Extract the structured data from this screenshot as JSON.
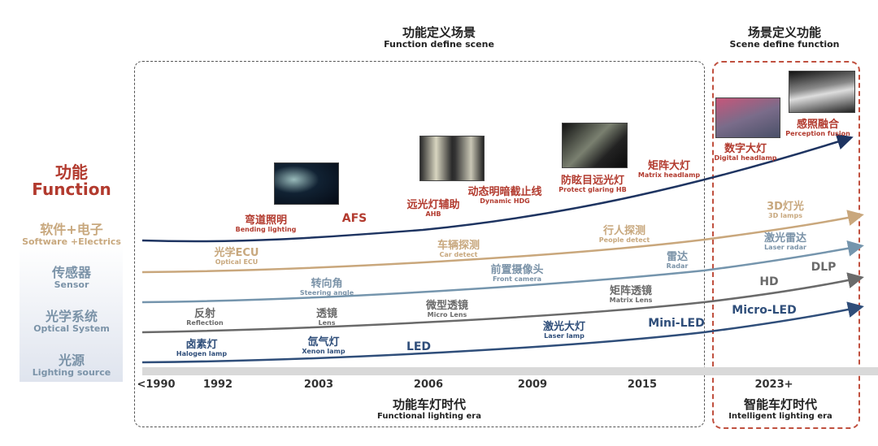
{
  "headers": {
    "left": {
      "cn": "功能定义场景",
      "en": "Function define scene"
    },
    "right": {
      "cn": "场景定义功能",
      "en": "Scene define function"
    },
    "left_bottom": {
      "cn": "功能车灯时代",
      "en": "Functional lighting era"
    },
    "right_bottom": {
      "cn": "智能车灯时代",
      "en": "Intelligent lighting era"
    }
  },
  "categories": [
    {
      "cn": "功能",
      "en": "Function"
    },
    {
      "cn": "软件+电子",
      "en": "Software +Electrics"
    },
    {
      "cn": "传感器",
      "en": "Sensor"
    },
    {
      "cn": "光学系统",
      "en": "Optical System"
    },
    {
      "cn": "光源",
      "en": "Lighting source"
    }
  ],
  "years": [
    "<1990",
    "1992",
    "2003",
    "2006",
    "2009",
    "2015",
    "2023+"
  ],
  "function_items": [
    {
      "cn": "弯道照明",
      "en": "Bending lighting"
    },
    {
      "cn": "AFS",
      "en": ""
    },
    {
      "cn": "远光灯辅助",
      "en": "AHB"
    },
    {
      "cn": "动态明暗截止线",
      "en": "Dynamic HDG"
    },
    {
      "cn": "防眩目远光灯",
      "en": "Protect glaring HB"
    },
    {
      "cn": "矩阵大灯",
      "en": "Matrix headlamp"
    },
    {
      "cn": "数字大灯",
      "en": "Digital headlamp"
    },
    {
      "cn": "感照融合",
      "en": "Perception fusion"
    }
  ],
  "software_items": [
    {
      "cn": "光学ECU",
      "en": "Optical ECU"
    },
    {
      "cn": "车辆探测",
      "en": "Car detect"
    },
    {
      "cn": "行人探测",
      "en": "People detect"
    },
    {
      "cn": "3D灯光",
      "en": "3D lamps"
    }
  ],
  "sensor_items": [
    {
      "cn": "转向角",
      "en": "Steering angle"
    },
    {
      "cn": "前置摄像头",
      "en": "Front camera"
    },
    {
      "cn": "雷达",
      "en": "Radar"
    },
    {
      "cn": "激光雷达",
      "en": "Laser radar"
    }
  ],
  "optical_items": [
    {
      "cn": "反射",
      "en": "Reflection"
    },
    {
      "cn": "透镜",
      "en": "Lens"
    },
    {
      "cn": "微型透镜",
      "en": "Micro Lens"
    },
    {
      "cn": "矩阵透镜",
      "en": "Matrix Lens"
    },
    {
      "cn": "HD",
      "en": ""
    },
    {
      "cn": "DLP",
      "en": ""
    }
  ],
  "source_items": [
    {
      "cn": "卤素灯",
      "en": "Halogen lamp"
    },
    {
      "cn": "氙气灯",
      "en": "Xenon lamp"
    },
    {
      "cn": "LED",
      "en": ""
    },
    {
      "cn": "激光大灯",
      "en": "Laser lamp"
    },
    {
      "cn": "Mini-LED",
      "en": ""
    },
    {
      "cn": "Micro-LED",
      "en": ""
    }
  ],
  "colors": {
    "function": "#1e3461",
    "software": "#c9a77c",
    "sensor": "#7595ad",
    "optical": "#6a6a6a",
    "source": "#2f4e7a",
    "accent_red": "#b23a2e"
  }
}
